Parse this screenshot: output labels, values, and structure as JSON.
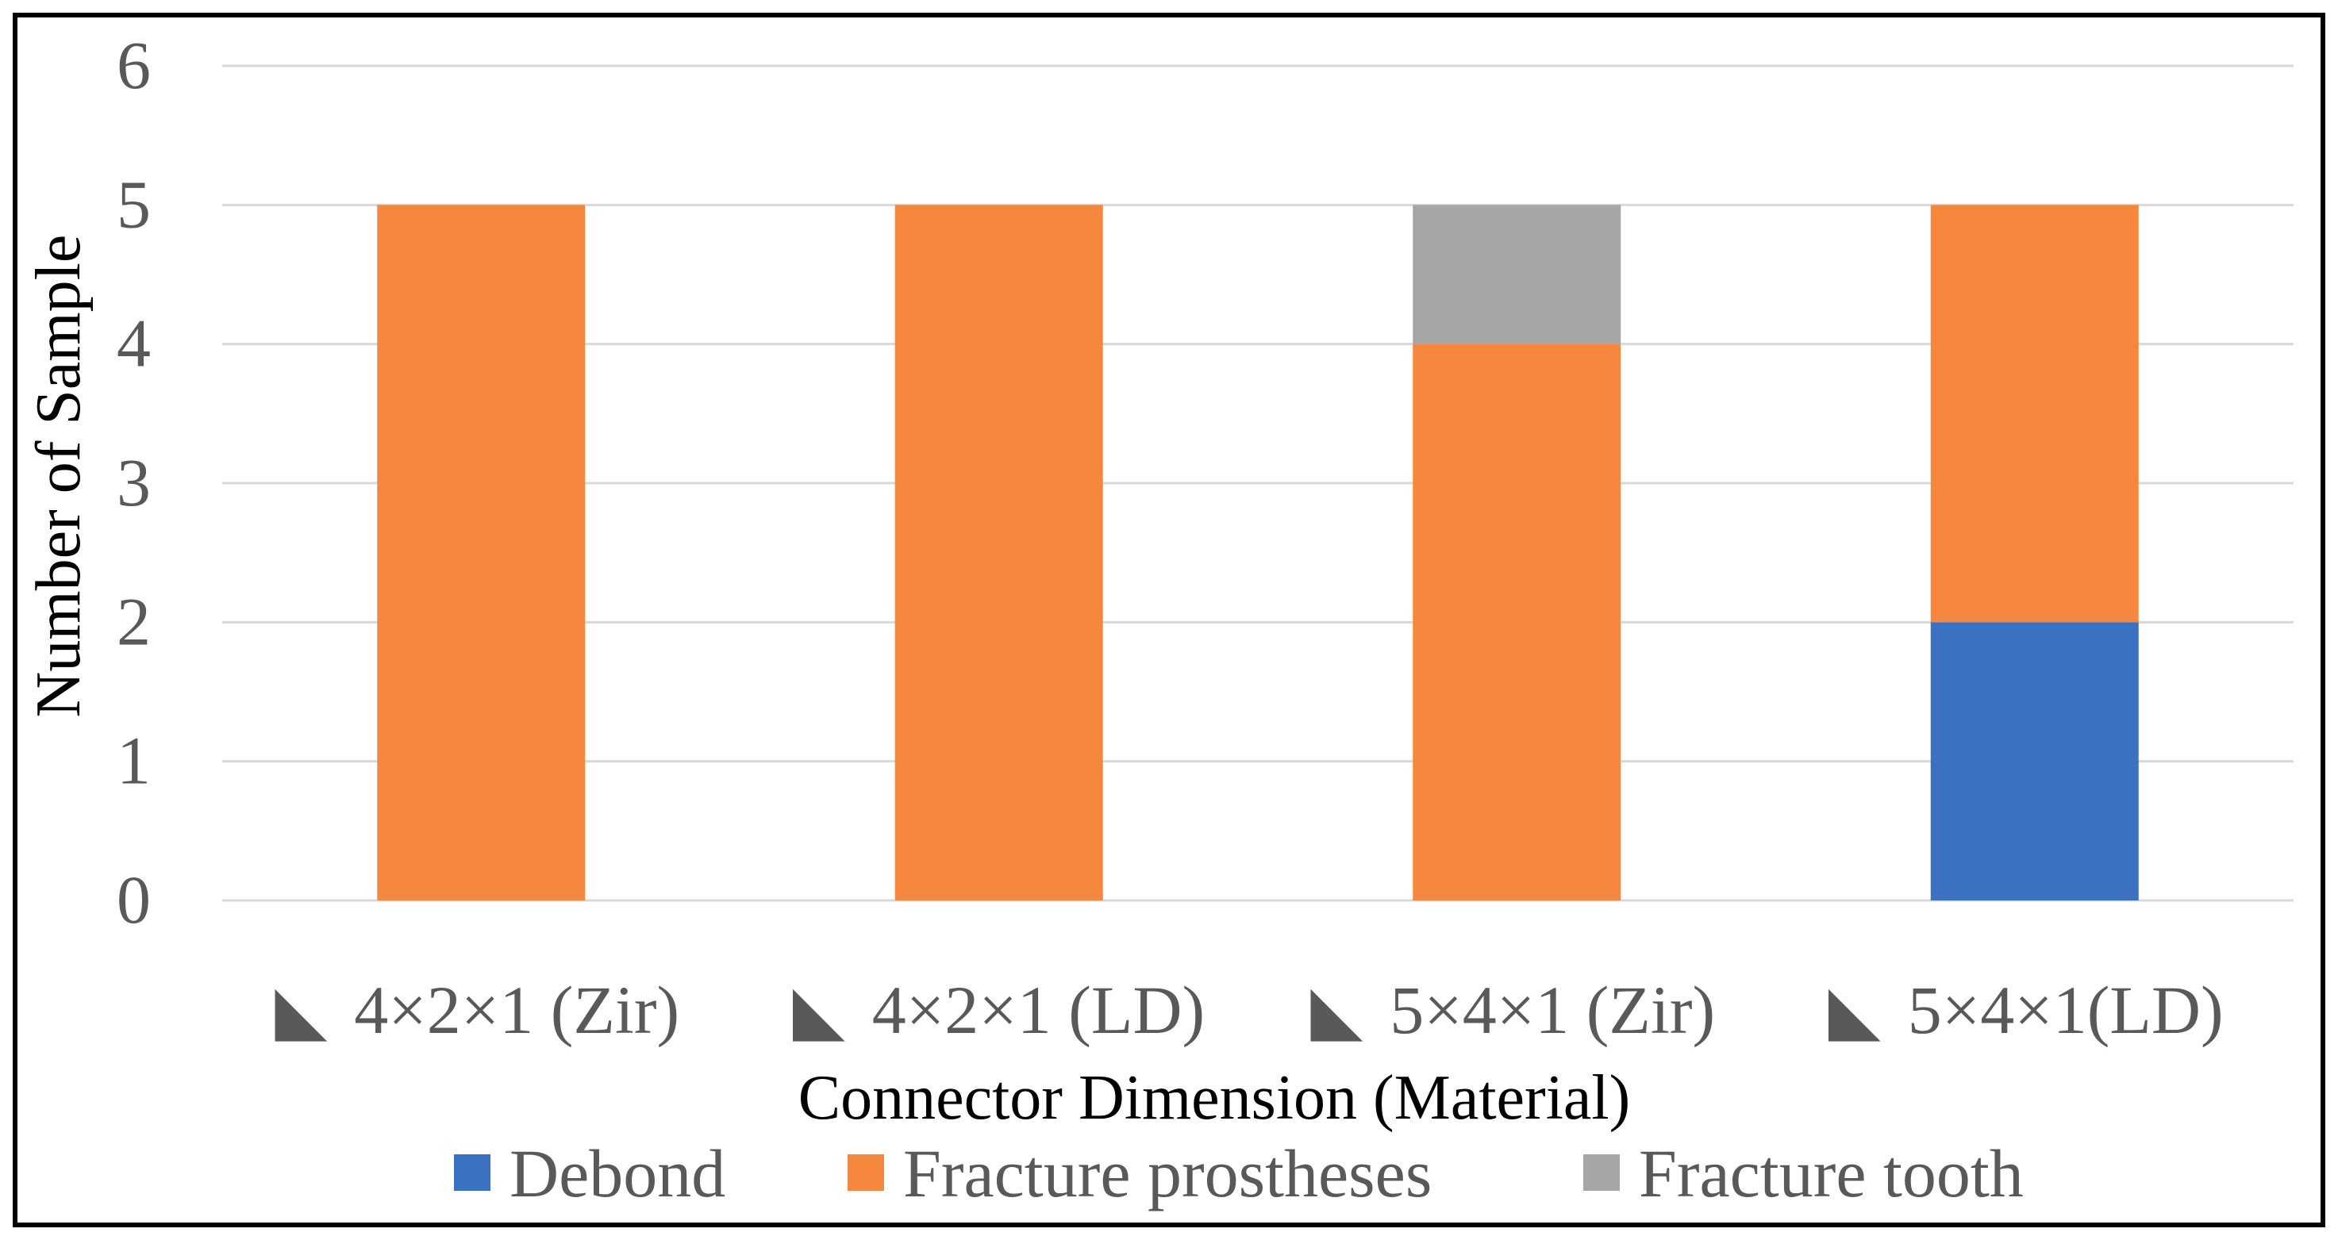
{
  "chart_data": {
    "type": "bar",
    "stacked": true,
    "title": "",
    "xlabel": "Connector Dimension (Material)",
    "ylabel": "Number of Sample",
    "ylim": [
      0,
      6
    ],
    "yticks": [
      "0",
      "1",
      "2",
      "3",
      "4",
      "5",
      "6"
    ],
    "grid": true,
    "legend_position": "bottom",
    "category_marker": "◣",
    "categories": [
      "4×2×1 (Zir)",
      "4×2×1 (LD)",
      "5×4×1 (Zir)",
      "5×4×1(LD)"
    ],
    "series": [
      {
        "name": "Debond",
        "color": "#3a71c1",
        "values": [
          0,
          0,
          0,
          2
        ]
      },
      {
        "name": "Fracture prostheses",
        "color": "#f5873f",
        "values": [
          5,
          5,
          4,
          3
        ]
      },
      {
        "name": "Fracture tooth",
        "color": "#a6a6a6",
        "values": [
          0,
          0,
          1,
          0
        ]
      }
    ]
  }
}
